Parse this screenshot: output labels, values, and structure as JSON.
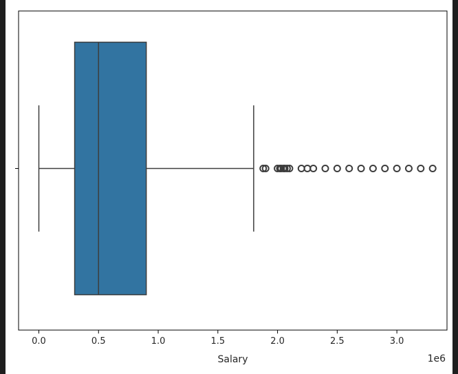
{
  "chart_data": {
    "type": "box",
    "orientation": "horizontal",
    "xlabel": "Salary",
    "offset_label": "1e6",
    "xlim": [
      -0.17,
      3.42
    ],
    "xticks": [
      0.0,
      0.5,
      1.0,
      1.5,
      2.0,
      2.5,
      3.0
    ],
    "xtick_labels": [
      "0.0",
      "0.5",
      "1.0",
      "1.5",
      "2.0",
      "2.5",
      "3.0"
    ],
    "box": {
      "whisker_low": 0.0,
      "q1": 0.3,
      "median": 0.5,
      "q3": 0.9,
      "whisker_high": 1.8
    },
    "outliers": [
      1.88,
      1.9,
      2.0,
      2.02,
      2.03,
      2.05,
      2.06,
      2.08,
      2.1,
      2.2,
      2.25,
      2.3,
      2.4,
      2.5,
      2.6,
      2.7,
      2.8,
      2.9,
      3.0,
      3.1,
      3.2,
      3.3
    ],
    "colors": {
      "box_fill": "#3274a1",
      "line": "#3d3d3d",
      "outlier_edge": "#3d3d3d"
    }
  }
}
